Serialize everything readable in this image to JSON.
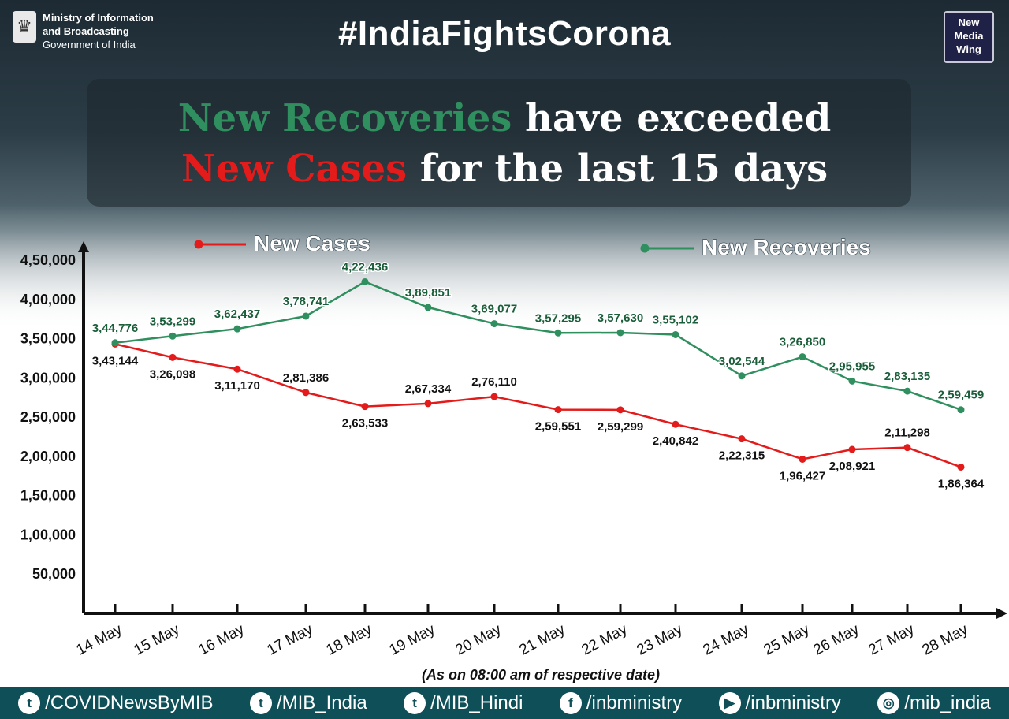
{
  "header": {
    "ministry_line1": "Ministry of Information",
    "ministry_line2": "and Broadcasting",
    "ministry_line3": "Government of India",
    "hashtag": "#IndiaFightsCorona",
    "logo_line1": "New",
    "logo_line2": "Media",
    "logo_line3": "Wing"
  },
  "headline": {
    "line1_part1": "New Recoveries",
    "line1_part2": "have exceeded",
    "line2_part1": "New Cases",
    "line2_part2": "for the last 15 days"
  },
  "chart_data": {
    "type": "line",
    "categories": [
      "14 May",
      "15 May",
      "16 May",
      "17 May",
      "18 May",
      "19 May",
      "20 May",
      "21 May",
      "22 May",
      "23 May",
      "24 May",
      "25 May",
      "26 May",
      "27 May",
      "28 May"
    ],
    "ylim": [
      0,
      450000
    ],
    "yticks": [
      50000,
      100000,
      150000,
      200000,
      250000,
      300000,
      350000,
      400000,
      450000
    ],
    "ytick_labels": [
      "50,000",
      "1,00,000",
      "1,50,000",
      "2,00,000",
      "2,50,000",
      "3,00,000",
      "3,50,000",
      "4,00,000",
      "4,50,000"
    ],
    "series": [
      {
        "name": "New Cases",
        "color": "#e41b1b",
        "values": [
          343144,
          326098,
          311170,
          281386,
          263533,
          267334,
          276110,
          259551,
          259299,
          240842,
          222315,
          196427,
          208921,
          211298,
          186364
        ],
        "labels": [
          "3,43,144",
          "3,26,098",
          "3,11,170",
          "2,81,386",
          "2,63,533",
          "2,67,334",
          "2,76,110",
          "2,59,551",
          "2,59,299",
          "2,40,842",
          "2,22,315",
          "1,96,427",
          "2,08,921",
          "2,11,298",
          "1,86,364"
        ]
      },
      {
        "name": "New Recoveries",
        "color": "#2f8f5e",
        "values": [
          344776,
          353299,
          362437,
          378741,
          422436,
          389851,
          369077,
          357295,
          357630,
          355102,
          302544,
          326850,
          295955,
          283135,
          259459
        ],
        "labels": [
          "3,44,776",
          "3,53,299",
          "3,62,437",
          "3,78,741",
          "4,22,436",
          "3,89,851",
          "3,69,077",
          "3,57,295",
          "3,57,630",
          "3,55,102",
          "3,02,544",
          "3,26,850",
          "2,95,955",
          "2,83,135",
          "2,59,459"
        ]
      }
    ],
    "note": "(As on 08:00 am of respective date)"
  },
  "footer": {
    "items": [
      {
        "icon": "twitter-icon",
        "label": "/COVIDNewsByMIB"
      },
      {
        "icon": "twitter-icon",
        "label": "/MIB_India"
      },
      {
        "icon": "twitter-icon",
        "label": "/MIB_Hindi"
      },
      {
        "icon": "facebook-icon",
        "label": "/inbministry"
      },
      {
        "icon": "youtube-icon",
        "label": "/inbministry"
      },
      {
        "icon": "instagram-icon",
        "label": "/mib_india"
      }
    ]
  }
}
